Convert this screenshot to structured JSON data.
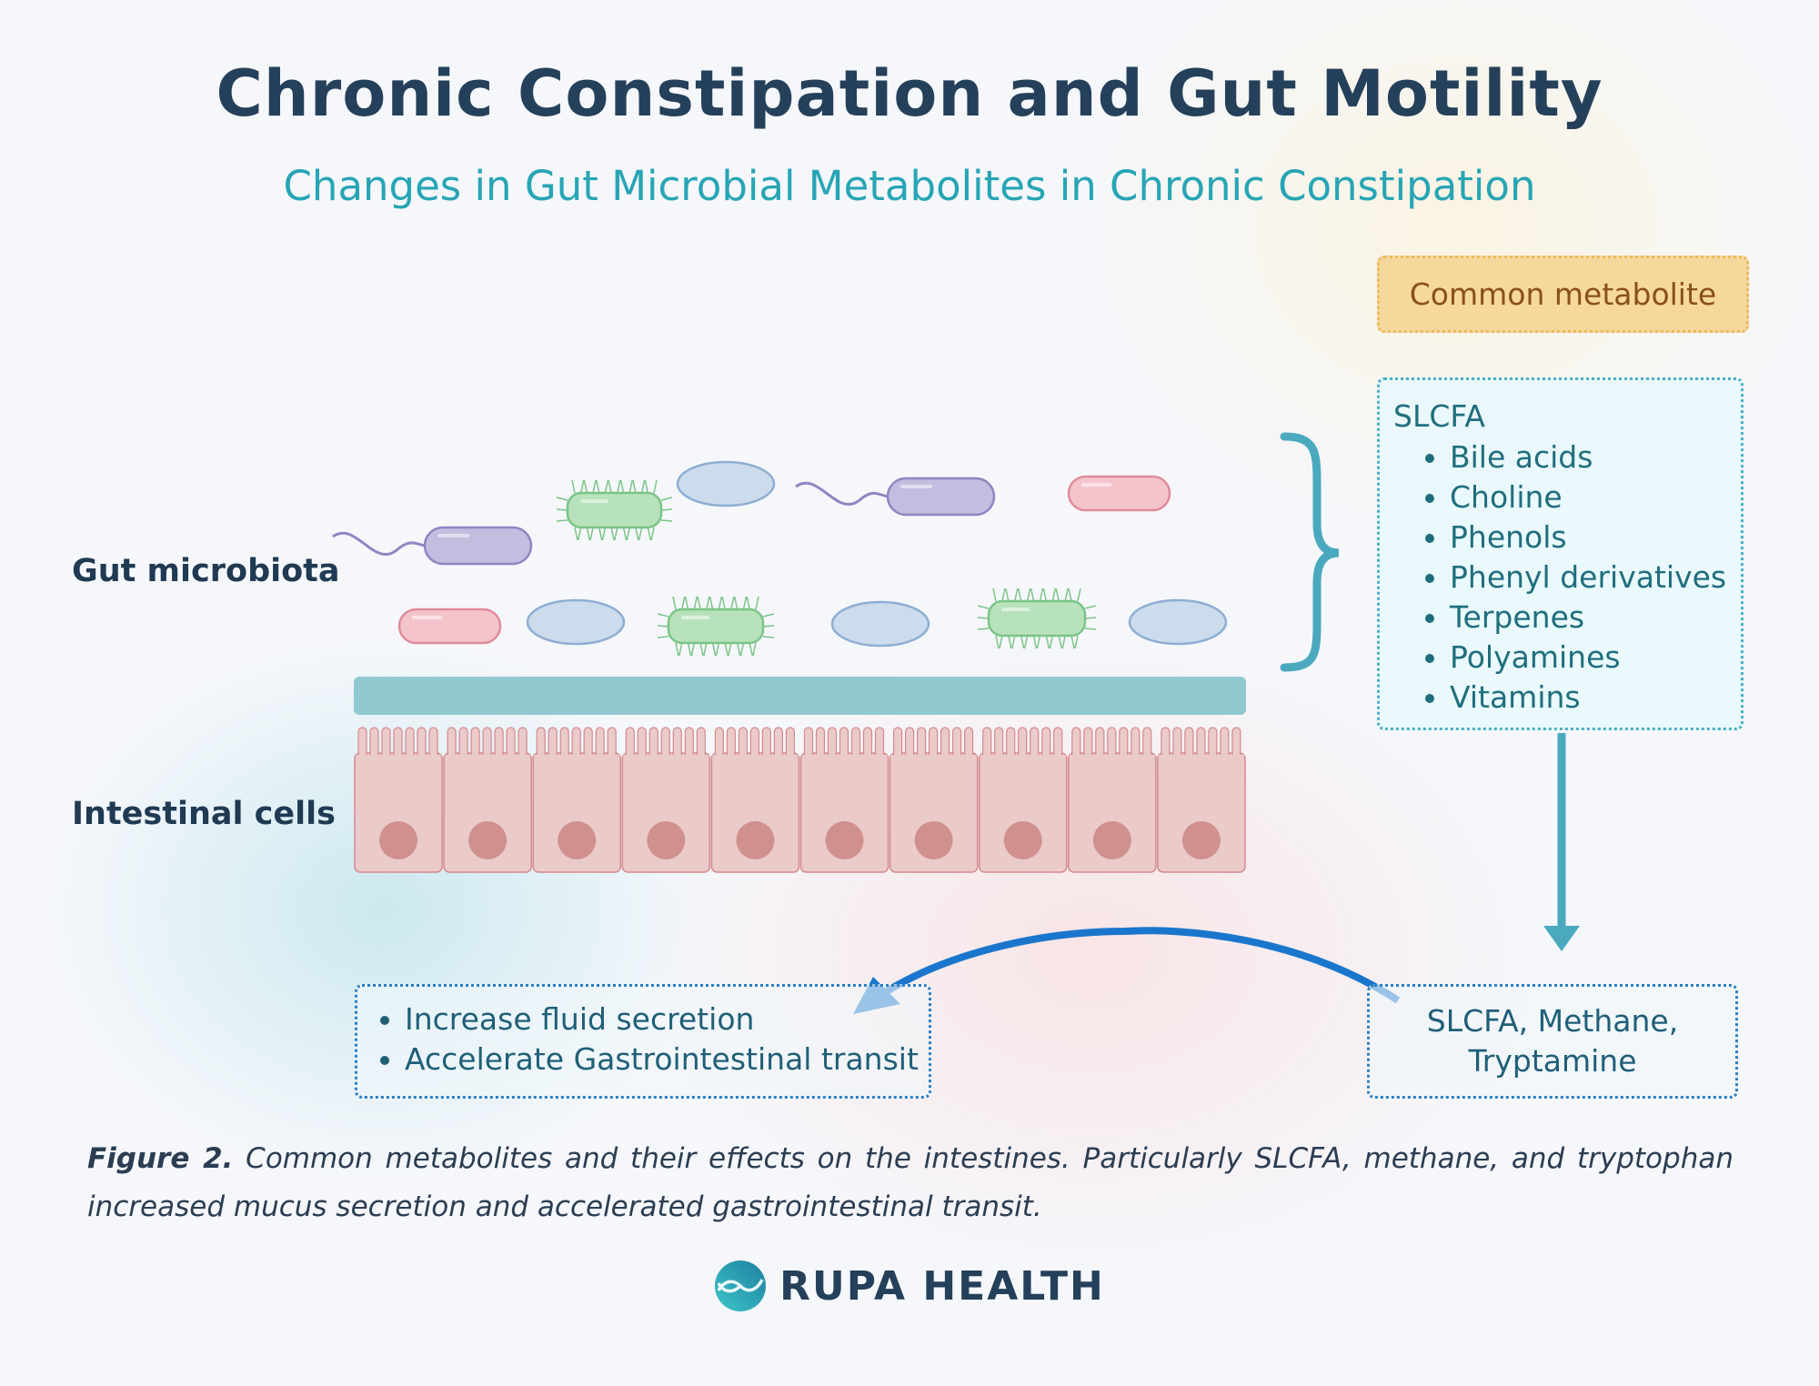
{
  "title": "Chronic Constipation and Gut Motility",
  "subtitle": "Changes in Gut Microbial Metabolites in Chronic Constipation",
  "labels": {
    "gut_microbiota": "Gut microbiota",
    "intestinal_cells": "Intestinal cells"
  },
  "common_metabolite": {
    "header": "Common metabolite",
    "group": "SLCFA",
    "items": [
      "Bile acids",
      "Choline",
      "Phenols",
      "Phenyl derivatives",
      "Terpenes",
      "Polyamines",
      "Vitamins"
    ]
  },
  "result": {
    "line1": "SLCFA, Methane,",
    "line2": "Tryptamine"
  },
  "effects": [
    "Increase fluid secretion",
    "Accelerate Gastrointestinal transit"
  ],
  "caption": {
    "label": "Figure 2.",
    "text": " Common metabolites and their effects on the intestines. Particularly SLCFA, methane, and tryptophan increased mucus secretion and accelerated gastrointestinal transit."
  },
  "logo": {
    "text": "RUPA HEALTH"
  },
  "colors": {
    "title": "#25405a",
    "subtitle": "#27a5b5",
    "mucus": "#92c9d0",
    "cell": "#ebcaca",
    "nucleus": "#cf908e",
    "arrow_teal": "#4aa9bf",
    "arrow_blue": "#1a76cc",
    "bacteria_purple": "#c3bde0",
    "bacteria_green": "#b7e2bb",
    "bacteria_pink": "#f4c4cd",
    "bacteria_blue": "#ccdcec"
  }
}
